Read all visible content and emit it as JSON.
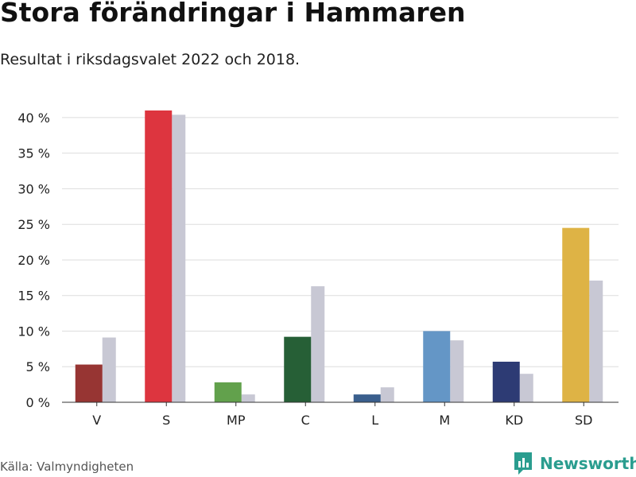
{
  "title": "Stora förändringar i Hammaren",
  "subtitle": "Resultat i riksdagsvalet 2022 och 2018.",
  "source": "Källa: Valmyndigheten",
  "brand": {
    "name": "Newsworthy",
    "icon": "bar-chart-logo-icon",
    "color": "#2a9d8f"
  },
  "chart_data": {
    "type": "bar",
    "categories": [
      "V",
      "S",
      "MP",
      "C",
      "L",
      "M",
      "KD",
      "SD"
    ],
    "series": [
      {
        "values": [
          5.3,
          41.0,
          2.8,
          9.2,
          1.1,
          10.0,
          5.7,
          24.5
        ],
        "colors": [
          "#973533",
          "#dd353f",
          "#62a14c",
          "#265f36",
          "#3a5f8d",
          "#6496c6",
          "#2d3b74",
          "#deb345"
        ]
      },
      {
        "values": [
          9.1,
          40.4,
          1.1,
          16.3,
          2.1,
          8.7,
          4.0,
          17.1
        ],
        "color": "#c8c8d4"
      }
    ],
    "yticks": [
      "0 %",
      "5 %",
      "10 %",
      "15 %",
      "20 %",
      "25 %",
      "30 %",
      "35 %",
      "40 %"
    ],
    "ytick_values": [
      0,
      5,
      10,
      15,
      20,
      25,
      30,
      35,
      40
    ],
    "ylim": [
      0,
      42
    ],
    "grid": true,
    "xlabel": "",
    "ylabel": ""
  }
}
